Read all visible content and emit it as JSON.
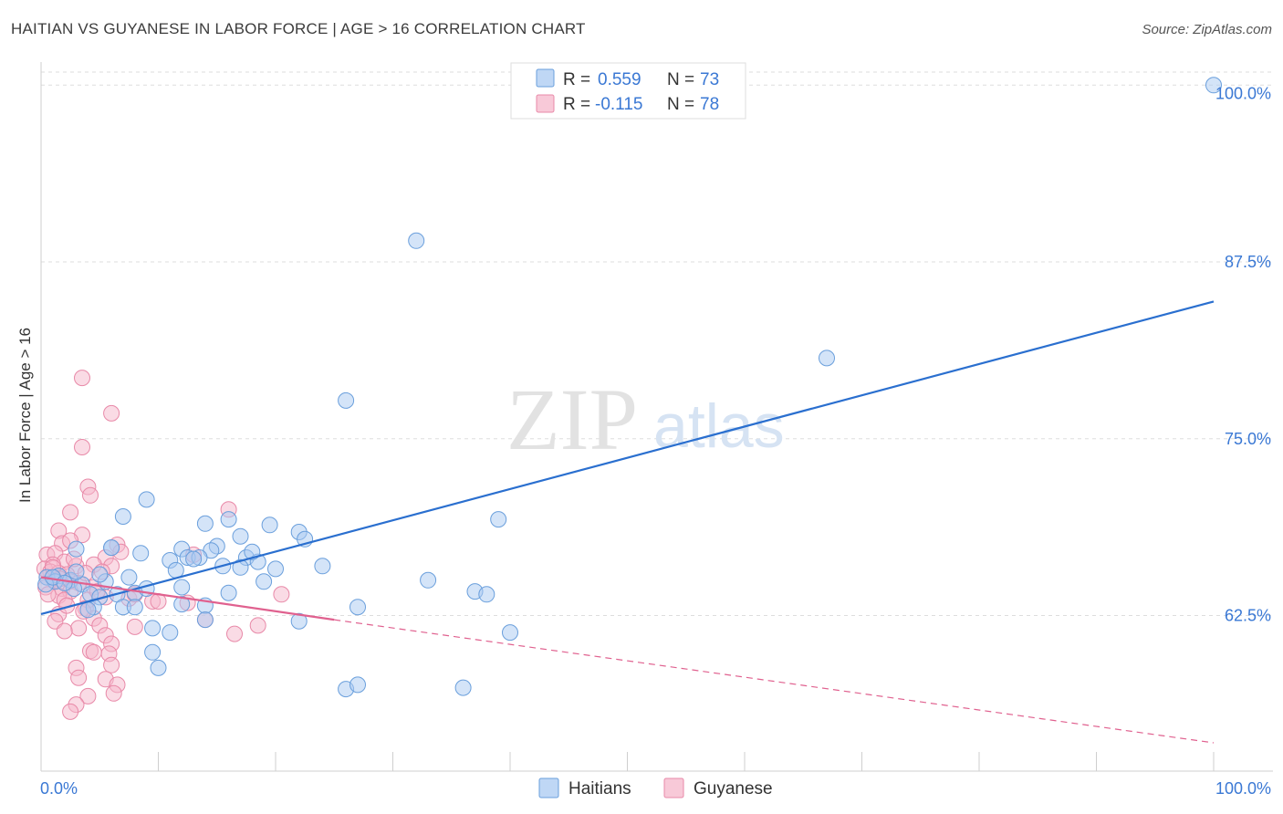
{
  "header": {
    "title": "HAITIAN VS GUYANESE IN LABOR FORCE | AGE > 16 CORRELATION CHART",
    "source": "Source: ZipAtlas.com"
  },
  "watermark": {
    "zip": "ZIP",
    "atlas": "atlas"
  },
  "legend": {
    "rows": [
      {
        "r_label": "R = ",
        "r_value": "0.559",
        "n_label": "N = ",
        "n_value": "73"
      },
      {
        "r_label": "R = ",
        "r_value": "-0.115",
        "n_label": "N = ",
        "n_value": "78"
      }
    ]
  },
  "colors": {
    "haitians_fill": "#a9c9f2",
    "haitians_stroke": "#6a9fdc",
    "haitians_line": "#2a6fcf",
    "guyanese_fill": "#f6b7cb",
    "guyanese_stroke": "#e889a8",
    "guyanese_line": "#e0618f",
    "tick_blue": "#3a78d4",
    "grid": "#dddddd"
  },
  "chart_data": {
    "type": "scatter",
    "title": "HAITIAN VS GUYANESE IN LABOR FORCE | AGE > 16 CORRELATION CHART",
    "xlabel": "",
    "ylabel": "In Labor Force | Age > 16",
    "xlim": [
      0,
      100
    ],
    "ylim": [
      51.5,
      101.5
    ],
    "x_tick_labels": [
      "0.0%",
      "100.0%"
    ],
    "y_ticks": [
      62.5,
      75.0,
      87.5,
      100.0
    ],
    "y_tick_labels": [
      "62.5%",
      "75.0%",
      "87.5%",
      "100.0%"
    ],
    "grid": true,
    "legend_position": "top-center",
    "series": [
      {
        "name": "Haitians",
        "r": 0.559,
        "n": 73,
        "trend": {
          "x": [
            0,
            100
          ],
          "y": [
            62.6,
            84.7
          ],
          "style": "solid"
        },
        "points": [
          [
            100,
            100
          ],
          [
            32,
            89
          ],
          [
            67,
            80.7
          ],
          [
            26,
            77.7
          ],
          [
            39,
            69.3
          ],
          [
            7,
            69.5
          ],
          [
            9,
            70.7
          ],
          [
            14,
            69
          ],
          [
            16,
            69.3
          ],
          [
            19.5,
            68.9
          ],
          [
            22,
            68.4
          ],
          [
            17,
            68.1
          ],
          [
            22.5,
            67.9
          ],
          [
            15,
            67.4
          ],
          [
            12,
            67.2
          ],
          [
            14.5,
            67.1
          ],
          [
            6,
            67.3
          ],
          [
            3,
            67.2
          ],
          [
            8.5,
            66.9
          ],
          [
            12.5,
            66.6
          ],
          [
            11,
            66.4
          ],
          [
            13.5,
            66.6
          ],
          [
            17.5,
            66.6
          ],
          [
            18.5,
            66.3
          ],
          [
            15.5,
            66.0
          ],
          [
            17,
            65.9
          ],
          [
            20,
            65.8
          ],
          [
            11.5,
            65.7
          ],
          [
            7.5,
            65.2
          ],
          [
            0.5,
            65.2
          ],
          [
            1.5,
            65.3
          ],
          [
            2.5,
            65.0
          ],
          [
            1.2,
            64.9
          ],
          [
            0.4,
            64.7
          ],
          [
            3.5,
            64.7
          ],
          [
            5.5,
            64.9
          ],
          [
            5,
            65.4
          ],
          [
            2.8,
            64.4
          ],
          [
            4.2,
            64.0
          ],
          [
            5,
            63.8
          ],
          [
            6.5,
            64.0
          ],
          [
            8,
            64.1
          ],
          [
            12,
            64.5
          ],
          [
            16,
            64.1
          ],
          [
            19,
            64.9
          ],
          [
            33,
            65.0
          ],
          [
            37,
            64.2
          ],
          [
            38,
            64.0
          ],
          [
            27,
            63.1
          ],
          [
            4.5,
            63.1
          ],
          [
            7,
            63.1
          ],
          [
            8,
            63.1
          ],
          [
            12,
            63.3
          ],
          [
            14,
            63.2
          ],
          [
            14,
            62.2
          ],
          [
            22,
            62.1
          ],
          [
            9.5,
            61.6
          ],
          [
            11,
            61.3
          ],
          [
            40,
            61.3
          ],
          [
            9.5,
            59.9
          ],
          [
            10,
            58.8
          ],
          [
            26,
            57.3
          ],
          [
            27,
            57.6
          ],
          [
            36,
            57.4
          ],
          [
            1,
            65.2
          ],
          [
            2,
            64.8
          ],
          [
            3,
            65.6
          ],
          [
            9,
            64.4
          ],
          [
            4,
            62.9
          ],
          [
            6,
            67.3
          ],
          [
            13,
            66.5
          ],
          [
            18,
            67.0
          ],
          [
            24,
            66.0
          ]
        ]
      },
      {
        "name": "Guyanese",
        "r": -0.115,
        "n": 78,
        "trend": {
          "x": [
            0,
            25,
            100
          ],
          "y": [
            65.2,
            62.2,
            53.5
          ],
          "solid_until": 25
        },
        "points": [
          [
            3.5,
            79.3
          ],
          [
            6,
            76.8
          ],
          [
            3.5,
            74.4
          ],
          [
            4,
            71.6
          ],
          [
            4.2,
            71.0
          ],
          [
            16,
            70
          ],
          [
            2.5,
            69.8
          ],
          [
            1.5,
            68.5
          ],
          [
            3.5,
            68.2
          ],
          [
            1.8,
            67.6
          ],
          [
            2.5,
            67.8
          ],
          [
            6.5,
            67.5
          ],
          [
            0.5,
            66.8
          ],
          [
            1.2,
            66.9
          ],
          [
            5.5,
            66.6
          ],
          [
            2,
            66.3
          ],
          [
            3,
            66.0
          ],
          [
            1,
            66.1
          ],
          [
            4.5,
            66.1
          ],
          [
            6,
            66.0
          ],
          [
            0.3,
            65.8
          ],
          [
            0.8,
            65.6
          ],
          [
            1.5,
            65.5
          ],
          [
            2.2,
            65.4
          ],
          [
            0.5,
            65.2
          ],
          [
            1.2,
            65.0
          ],
          [
            2.5,
            64.9
          ],
          [
            3.2,
            64.8
          ],
          [
            0.4,
            64.5
          ],
          [
            1.8,
            64.4
          ],
          [
            4.5,
            64.5
          ],
          [
            2.5,
            64.2
          ],
          [
            1.5,
            63.9
          ],
          [
            2,
            63.6
          ],
          [
            4,
            63.6
          ],
          [
            5.5,
            63.8
          ],
          [
            7.5,
            63.7
          ],
          [
            9.5,
            63.5
          ],
          [
            12.5,
            63.4
          ],
          [
            8,
            64.0
          ],
          [
            20.5,
            64.0
          ],
          [
            3.8,
            63.0
          ],
          [
            1.5,
            62.6
          ],
          [
            4.5,
            62.3
          ],
          [
            1.2,
            62.1
          ],
          [
            14,
            62.2
          ],
          [
            18.5,
            61.8
          ],
          [
            5,
            61.8
          ],
          [
            3.2,
            61.6
          ],
          [
            8,
            61.7
          ],
          [
            2,
            61.4
          ],
          [
            16.5,
            61.2
          ],
          [
            5.5,
            61.1
          ],
          [
            6,
            60.5
          ],
          [
            4.2,
            60.0
          ],
          [
            5.8,
            59.8
          ],
          [
            4.5,
            59.9
          ],
          [
            6,
            59.0
          ],
          [
            3,
            58.8
          ],
          [
            3.2,
            58.1
          ],
          [
            5.5,
            58.0
          ],
          [
            6.5,
            57.6
          ],
          [
            6.2,
            57.0
          ],
          [
            4,
            56.8
          ],
          [
            3,
            56.2
          ],
          [
            2.5,
            55.7
          ],
          [
            1,
            65.9
          ],
          [
            2.8,
            66.5
          ],
          [
            0.6,
            64.0
          ],
          [
            3.8,
            65.5
          ],
          [
            10,
            63.5
          ],
          [
            13,
            66.8
          ],
          [
            6.8,
            67.0
          ],
          [
            2.2,
            63.2
          ],
          [
            4.8,
            64.2
          ],
          [
            1.6,
            65.1
          ],
          [
            3.6,
            62.8
          ],
          [
            5.2,
            65.6
          ]
        ]
      }
    ]
  },
  "bottom_legend": {
    "items": [
      "Haitians",
      "Guyanese"
    ]
  }
}
